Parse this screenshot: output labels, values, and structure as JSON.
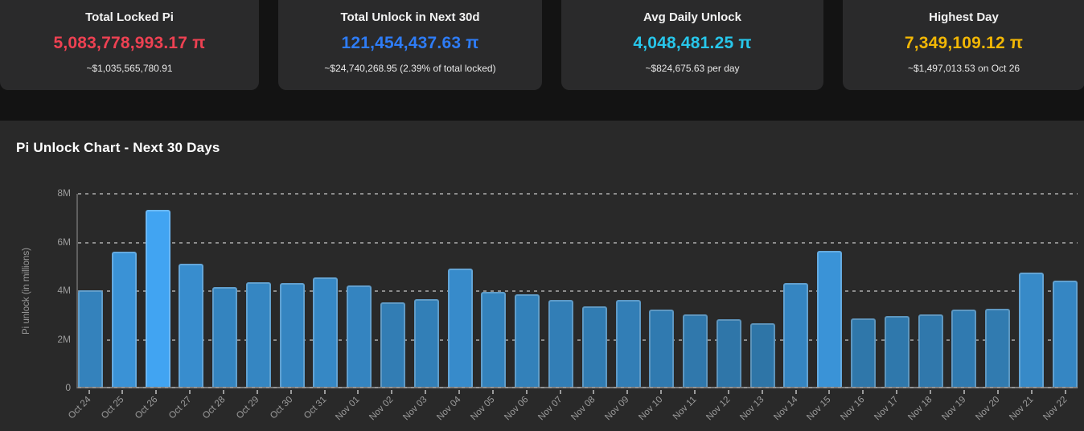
{
  "cards": [
    {
      "title": "Total Locked Pi",
      "value": "5,083,778,993.17 π",
      "subtext": "~$1,035,565,780.91",
      "color": "#ee4152"
    },
    {
      "title": "Total Unlock in Next 30d",
      "value": "121,454,437.63 π",
      "subtext": "~$24,740,268.95 (2.39% of total locked)",
      "color": "#2e7cf6"
    },
    {
      "title": "Avg Daily Unlock",
      "value": "4,048,481.25 π",
      "subtext": "~$824,675.63 per day",
      "color": "#27c6ea"
    },
    {
      "title": "Highest Day",
      "value": "7,349,109.12 π",
      "subtext": "~$1,497,013.53 on Oct 26",
      "color": "#f2b705"
    }
  ],
  "chart_data": {
    "type": "bar",
    "title": "Pi Unlock Chart - Next 30 Days",
    "xlabel": "",
    "ylabel": "Pi unlock (in millions)",
    "units": "millions of Pi",
    "ylim": [
      0,
      8
    ],
    "ytick_labels": [
      "0",
      "2M",
      "4M",
      "6M",
      "8M"
    ],
    "grid": true,
    "legend": false,
    "categories": [
      "Oct 24",
      "Oct 25",
      "Oct 26",
      "Oct 27",
      "Oct 28",
      "Oct 29",
      "Oct 30",
      "Oct 31",
      "Nov 01",
      "Nov 02",
      "Nov 03",
      "Nov 04",
      "Nov 05",
      "Nov 06",
      "Nov 07",
      "Nov 08",
      "Nov 09",
      "Nov 10",
      "Nov 11",
      "Nov 12",
      "Nov 13",
      "Nov 14",
      "Nov 15",
      "Nov 16",
      "Nov 17",
      "Nov 18",
      "Nov 19",
      "Nov 20",
      "Nov 21",
      "Nov 22"
    ],
    "values": [
      4.0,
      5.6,
      7.35,
      5.1,
      4.15,
      4.35,
      4.3,
      4.55,
      4.2,
      3.5,
      3.65,
      4.9,
      3.95,
      3.85,
      3.6,
      3.35,
      3.6,
      3.2,
      3.0,
      2.8,
      2.65,
      4.3,
      5.65,
      2.85,
      2.95,
      3.0,
      3.2,
      3.25,
      4.75,
      4.4
    ],
    "bar_color_scale": {
      "low_value": 2.6,
      "high_value": 7.35,
      "low_color": "#2E74A6",
      "high_color": "#41A4F2"
    }
  }
}
